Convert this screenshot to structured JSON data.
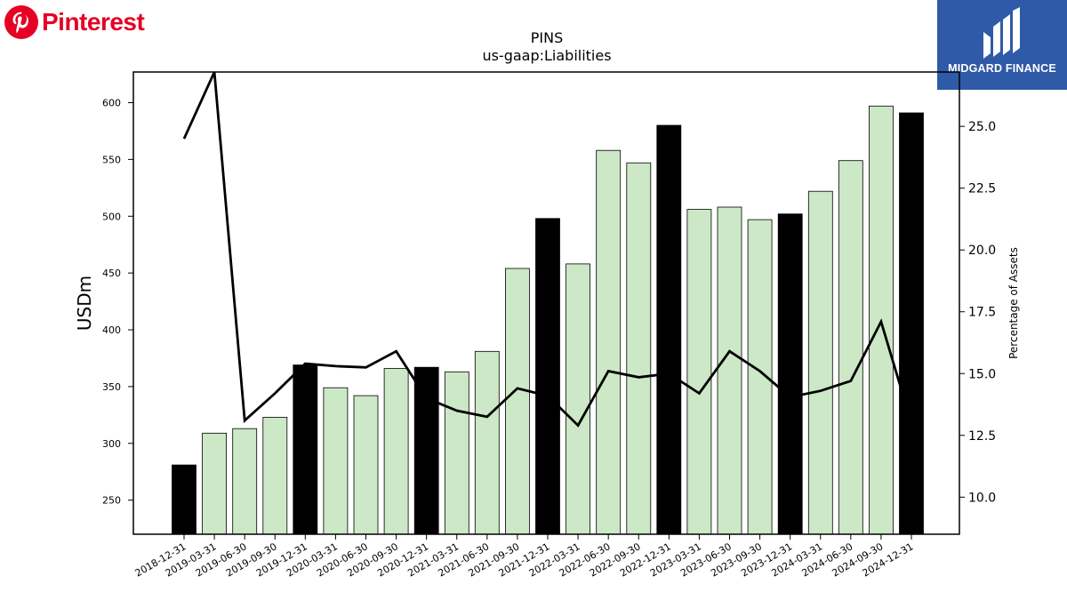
{
  "branding": {
    "left_logo_text": "Pinterest",
    "left_logo_color": "#e60023",
    "right_logo_text": "MIDGARD FINANCE",
    "right_logo_bg": "#2f5aa8"
  },
  "chart_data": {
    "type": "bar",
    "title": "PINS",
    "subtitle": "us-gaap:Liabilities",
    "ylabel": "USDm",
    "y2label": "Percentage of Assets",
    "ylim": [
      220,
      627
    ],
    "y2lim": [
      8.5,
      27.2
    ],
    "yticks": [
      250,
      300,
      350,
      400,
      450,
      500,
      550,
      600
    ],
    "y2ticks": [
      "10.0",
      "12.5",
      "15.0",
      "17.5",
      "20.0",
      "22.5",
      "25.0"
    ],
    "categories": [
      "2018-12-31",
      "2019-03-31",
      "2019-06-30",
      "2019-09-30",
      "2019-12-31",
      "2020-03-31",
      "2020-06-30",
      "2020-09-30",
      "2020-12-31",
      "2021-03-31",
      "2021-06-30",
      "2021-09-30",
      "2021-12-31",
      "2022-03-31",
      "2022-06-30",
      "2022-09-30",
      "2022-12-31",
      "2023-03-31",
      "2023-06-30",
      "2023-09-30",
      "2023-12-31",
      "2024-03-31",
      "2024-06-30",
      "2024-09-30",
      "2024-12-31"
    ],
    "series": [
      {
        "type": "bar",
        "axis": "left",
        "values": [
          281,
          309,
          313,
          323,
          369,
          349,
          342,
          366,
          367,
          363,
          381,
          454,
          498,
          458,
          558,
          547,
          580,
          506,
          508,
          497,
          502,
          522,
          549,
          597,
          591
        ],
        "annual_color": "#000000",
        "quarter_color": "#cce8c6"
      },
      {
        "type": "line",
        "axis": "right",
        "values": [
          24.5,
          27.2,
          13.1,
          14.2,
          15.4,
          15.3,
          15.25,
          15.9,
          14.0,
          13.5,
          13.25,
          14.4,
          14.1,
          12.9,
          15.1,
          14.85,
          15.0,
          14.2,
          15.9,
          15.1,
          14.05,
          14.3,
          14.7,
          17.1,
          13.0
        ],
        "color": "#000000"
      }
    ],
    "grid": false,
    "legend": "none"
  }
}
